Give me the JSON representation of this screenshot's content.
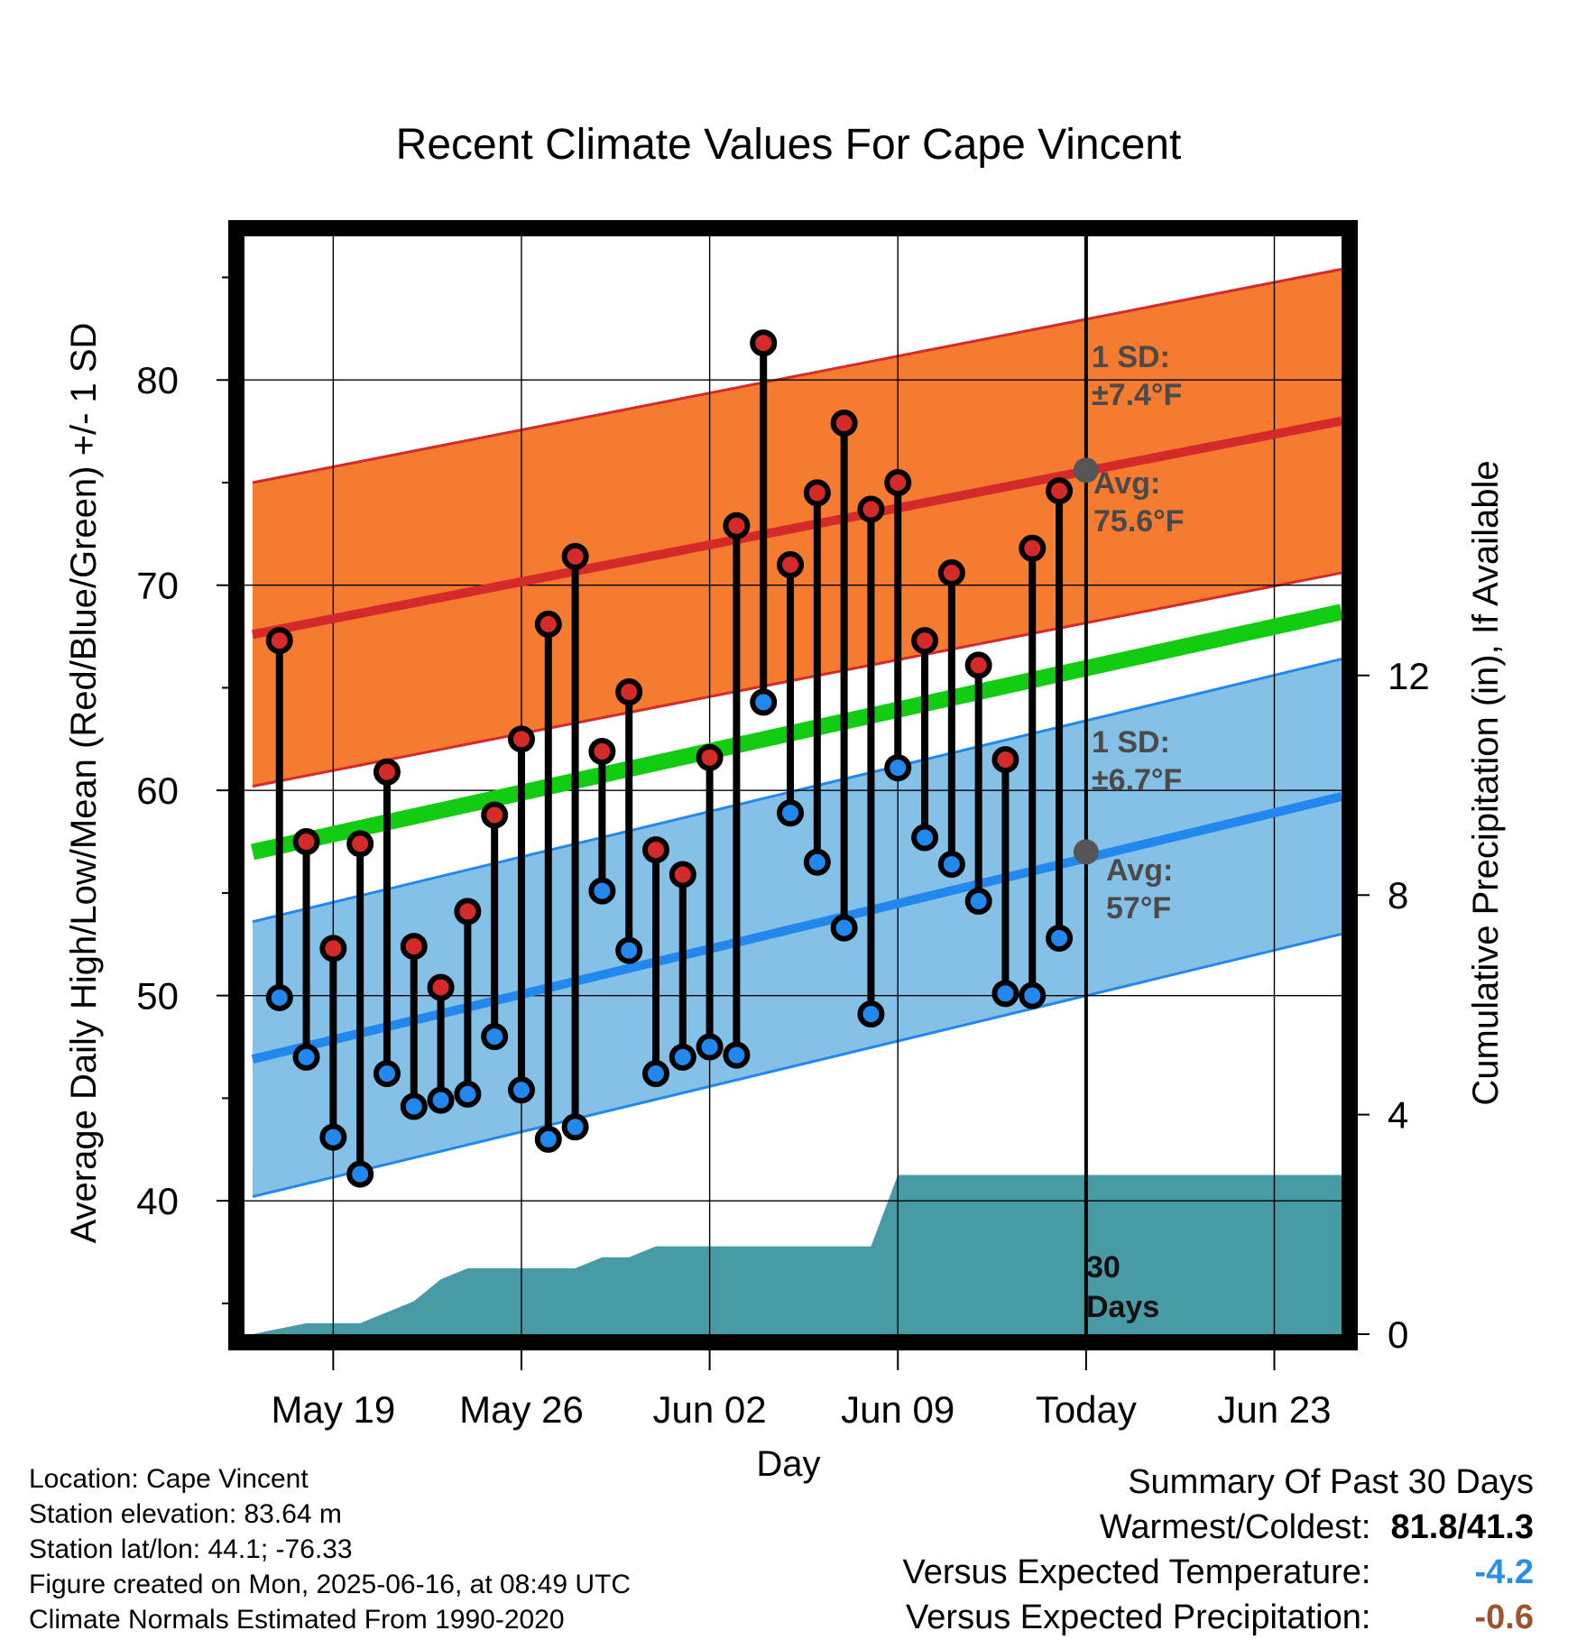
{
  "chart_data": {
    "type": "line",
    "title": "Recent Climate Values For Cape Vincent",
    "xlabel": "Day",
    "ylabel": "Average Daily High/Low/Mean (Red/Blue/Green) +/- 1 SD",
    "y2label": "Cumulative Precipitation (in), If Available",
    "ylim": [
      33.5,
      87
    ],
    "y2lim": [
      0,
      20
    ],
    "x_tick_labels": [
      "May 19",
      "May 26",
      "Jun 02",
      "Jun 09",
      "Today",
      "Jun 23"
    ],
    "x_tick_days": [
      2,
      9,
      16,
      23,
      30,
      37
    ],
    "y_ticks": [
      40,
      50,
      60,
      70,
      80
    ],
    "y2_ticks": [
      0,
      4,
      8,
      12
    ],
    "x_range": [
      -1.3,
      39.5
    ],
    "grid": true,
    "days": [
      0,
      1,
      2,
      3,
      4,
      5,
      6,
      7,
      8,
      9,
      10,
      11,
      12,
      13,
      14,
      15,
      16,
      17,
      18,
      19,
      20,
      21,
      22,
      23,
      24,
      25,
      26,
      27,
      28,
      29
    ],
    "highs": [
      67.3,
      57.5,
      52.3,
      57.4,
      60.9,
      52.4,
      50.4,
      54.1,
      58.8,
      62.5,
      68.1,
      71.4,
      61.9,
      64.8,
      57.1,
      55.9,
      61.6,
      72.9,
      81.8,
      71.0,
      74.5,
      77.9,
      73.7,
      75.0,
      67.3,
      70.6,
      66.1,
      61.5,
      71.8,
      74.6
    ],
    "lows": [
      49.9,
      47.0,
      43.1,
      41.3,
      46.2,
      44.6,
      44.9,
      45.2,
      48.0,
      45.4,
      43.0,
      43.6,
      55.1,
      52.2,
      46.2,
      47.0,
      47.5,
      47.1,
      64.3,
      58.9,
      56.5,
      53.3,
      49.1,
      61.1,
      57.7,
      56.4,
      54.6,
      50.1,
      50.0,
      52.8
    ],
    "normal_high": {
      "x": [
        -1,
        39.5
      ],
      "y": [
        67.6,
        78.0
      ],
      "sd": 7.4
    },
    "normal_low": {
      "x": [
        -1,
        39.5
      ],
      "y": [
        46.9,
        59.7
      ],
      "sd": 6.7
    },
    "normal_mean": {
      "x": [
        -1,
        39.5
      ],
      "y": [
        57.0,
        68.7
      ]
    },
    "today_markers": {
      "high_avg": 75.6,
      "low_avg": 57
    },
    "cumulative_precip": {
      "x": [
        -1,
        0,
        1,
        2,
        3,
        4,
        5,
        6,
        7,
        8,
        9,
        10,
        11,
        12,
        13,
        14,
        15,
        16,
        17,
        18,
        19,
        20,
        21,
        22,
        23,
        24,
        25,
        26,
        27,
        28,
        29,
        30,
        39.5
      ],
      "y": [
        0,
        0.1,
        0.2,
        0.2,
        0.2,
        0.4,
        0.6,
        1.0,
        1.2,
        1.2,
        1.2,
        1.2,
        1.2,
        1.4,
        1.4,
        1.6,
        1.6,
        1.6,
        1.6,
        1.6,
        1.6,
        1.6,
        1.6,
        1.6,
        2.9,
        2.9,
        2.9,
        2.9,
        2.9,
        2.9,
        2.9,
        2.9,
        2.9
      ]
    },
    "colors": {
      "high_band": "#f47b30",
      "high_line": "#d42a2a",
      "low_band": "#85c1e6",
      "low_line": "#2288ee",
      "mean_line": "#11cc11",
      "precip": "#489ba5",
      "high_dot": "#d42a2a",
      "low_dot": "#2288ee",
      "annotation": "#4a4a4a"
    }
  },
  "annotations": {
    "high_sd_line1": "1 SD:",
    "high_sd_line2": "±7.4°F",
    "high_avg_line1": "Avg:",
    "high_avg_line2": "75.6°F",
    "low_sd_line1": "1 SD:",
    "low_sd_line2": "±6.7°F",
    "low_avg_line1": "Avg:",
    "low_avg_line2": "57°F",
    "precip_line1": "30",
    "precip_line2": "Days"
  },
  "station_info": {
    "location": "Location: Cape Vincent",
    "elevation": "Station elevation: 83.64 m",
    "latlon": "Station lat/lon: 44.1; -76.33",
    "created": "Figure created on Mon, 2025-06-16, at 08:49 UTC",
    "normals": "Climate Normals Estimated From 1990-2020"
  },
  "summary": {
    "title": "Summary Of Past 30 Days",
    "warm_cold_label": "Warmest/Coldest:",
    "warm_cold_value": "81.8/41.3",
    "temp_label": "Versus Expected Temperature:",
    "temp_value": "-4.2",
    "temp_color": "#2a8ee8",
    "precip_label": "Versus Expected Precipitation:",
    "precip_value": "-0.6",
    "precip_color": "#a0522d"
  }
}
